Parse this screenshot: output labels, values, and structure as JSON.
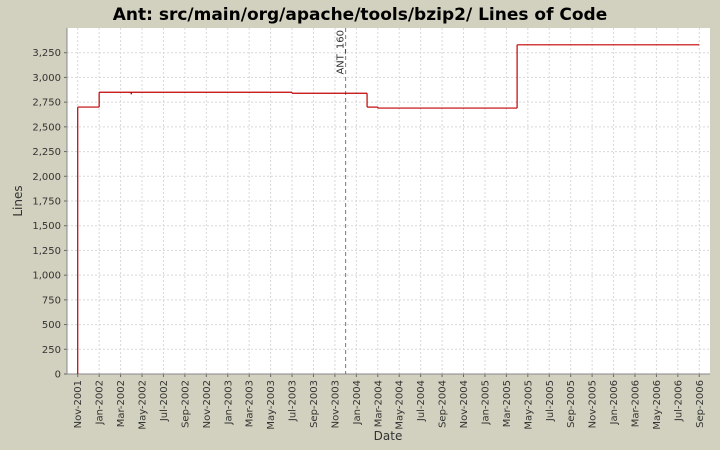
{
  "chart_data": {
    "type": "step-line",
    "title": "Ant: src/main/org/apache/tools/bzip2/ Lines of Code",
    "x_label": "Date",
    "y_label": "Lines",
    "series": [
      {
        "color": "#c00000",
        "x": [
          "2001-11",
          "2001-11",
          "2002-01",
          "2002-04",
          "2002-04",
          "2003-07",
          "2004-02",
          "2004-03",
          "2005-04",
          "2006-09"
        ],
        "values": [
          0,
          2700,
          2850,
          2830,
          2850,
          2840,
          2700,
          2690,
          3330,
          3330
        ]
      }
    ],
    "annotations": [
      {
        "label": "ANT_160",
        "x": "2003-12"
      }
    ],
    "xlim": [
      "2001-10",
      "2006-10"
    ],
    "xticks": [
      {
        "value": "2001-11",
        "label": "Nov-2001"
      },
      {
        "value": "2002-01",
        "label": "Jan-2002"
      },
      {
        "value": "2002-03",
        "label": "Mar-2002"
      },
      {
        "value": "2002-05",
        "label": "May-2002"
      },
      {
        "value": "2002-07",
        "label": "Jul-2002"
      },
      {
        "value": "2002-09",
        "label": "Sep-2002"
      },
      {
        "value": "2002-11",
        "label": "Nov-2002"
      },
      {
        "value": "2003-01",
        "label": "Jan-2003"
      },
      {
        "value": "2003-03",
        "label": "Mar-2003"
      },
      {
        "value": "2003-05",
        "label": "May-2003"
      },
      {
        "value": "2003-07",
        "label": "Jul-2003"
      },
      {
        "value": "2003-09",
        "label": "Sep-2003"
      },
      {
        "value": "2003-11",
        "label": "Nov-2003"
      },
      {
        "value": "2004-01",
        "label": "Jan-2004"
      },
      {
        "value": "2004-03",
        "label": "Mar-2004"
      },
      {
        "value": "2004-05",
        "label": "May-2004"
      },
      {
        "value": "2004-07",
        "label": "Jul-2004"
      },
      {
        "value": "2004-09",
        "label": "Sep-2004"
      },
      {
        "value": "2004-11",
        "label": "Nov-2004"
      },
      {
        "value": "2005-01",
        "label": "Jan-2005"
      },
      {
        "value": "2005-03",
        "label": "Mar-2005"
      },
      {
        "value": "2005-05",
        "label": "May-2005"
      },
      {
        "value": "2005-07",
        "label": "Jul-2005"
      },
      {
        "value": "2005-09",
        "label": "Sep-2005"
      },
      {
        "value": "2005-11",
        "label": "Nov-2005"
      },
      {
        "value": "2006-01",
        "label": "Jan-2006"
      },
      {
        "value": "2006-03",
        "label": "Mar-2006"
      },
      {
        "value": "2006-05",
        "label": "May-2006"
      },
      {
        "value": "2006-07",
        "label": "Jul-2006"
      },
      {
        "value": "2006-09",
        "label": "Sep-2006"
      }
    ],
    "ylim": [
      0,
      3500
    ],
    "yticks": [
      0,
      250,
      500,
      750,
      {
        "value": 1000,
        "label": "1,000"
      },
      {
        "value": 1250,
        "label": "1,250"
      },
      {
        "value": 1500,
        "label": "1,500"
      },
      {
        "value": 1750,
        "label": "1,750"
      },
      {
        "value": 2000,
        "label": "2,000"
      },
      {
        "value": 2250,
        "label": "2,250"
      },
      {
        "value": 2500,
        "label": "2,500"
      },
      {
        "value": 2750,
        "label": "2,750"
      },
      {
        "value": 3000,
        "label": "3,000"
      },
      {
        "value": 3250,
        "label": "3,250"
      }
    ],
    "grid": true
  }
}
